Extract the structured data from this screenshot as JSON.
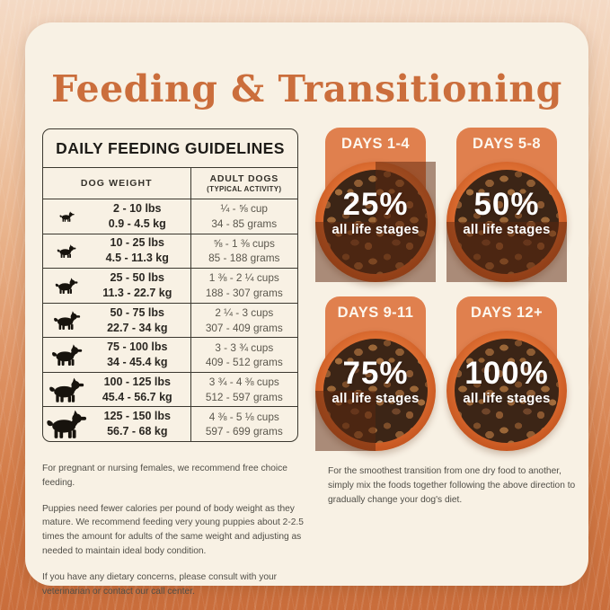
{
  "page": {
    "title": "Feeding & Transitioning"
  },
  "colors": {
    "accent_orange": "#CB6E3C",
    "badge_orange": "#E0804E",
    "bowl_rim_orange": "#CA5A23",
    "card_cream": "#F8F1E4",
    "shade": "rgba(92,38,13,0.5)",
    "table_border": "#3B382F"
  },
  "table": {
    "title": "DAILY FEEDING GUIDELINES",
    "col1_header": "DOG WEIGHT",
    "col2_header_line1": "ADULT DOGS",
    "col2_header_line2": "(TYPICAL ACTIVITY)",
    "rows": [
      {
        "icon": "dog-icon",
        "icon_size": 17,
        "lbs": "2 - 10 lbs",
        "kg": "0.9 - 4.5 kg",
        "cups": "¼ - ⅝ cup",
        "grams": "34 - 85 grams"
      },
      {
        "icon": "dog-icon",
        "icon_size": 22,
        "lbs": "10 - 25 lbs",
        "kg": "4.5 - 11.3 kg",
        "cups": "⅝ - 1 ⅜ cups",
        "grams": "85 - 188 grams"
      },
      {
        "icon": "dog-icon",
        "icon_size": 26,
        "lbs": "25 - 50 lbs",
        "kg": "11.3 - 22.7 kg",
        "cups": "1 ⅜ - 2 ¼ cups",
        "grams": "188 - 307 grams"
      },
      {
        "icon": "dog-icon",
        "icon_size": 31,
        "lbs": "50 - 75 lbs",
        "kg": "22.7 - 34 kg",
        "cups": "2 ¼ - 3 cups",
        "grams": "307 - 409 grams"
      },
      {
        "icon": "dog-icon",
        "icon_size": 35,
        "lbs": "75 - 100 lbs",
        "kg": "34 - 45.4 kg",
        "cups": "3 - 3 ¾ cups",
        "grams": "409 - 512 grams"
      },
      {
        "icon": "dog-icon",
        "icon_size": 40,
        "lbs": "100 - 125 lbs",
        "kg": "45.4 - 56.7 kg",
        "cups": "3 ¾ - 4 ⅜ cups",
        "grams": "512 - 597 grams"
      },
      {
        "icon": "dog-icon",
        "icon_size": 46,
        "lbs": "125 - 150 lbs",
        "kg": "56.7 - 68 kg",
        "cups": "4 ⅜ - 5 ⅛ cups",
        "grams": "597 - 699 grams"
      }
    ]
  },
  "transition": {
    "bowls": [
      {
        "badge": "DAYS 1-4",
        "percent": 25,
        "percent_label": "25%",
        "subtitle": "all life stages",
        "icon": "food-bowl-icon"
      },
      {
        "badge": "DAYS 5-8",
        "percent": 50,
        "percent_label": "50%",
        "subtitle": "all life stages",
        "icon": "food-bowl-icon"
      },
      {
        "badge": "DAYS 9-11",
        "percent": 75,
        "percent_label": "75%",
        "subtitle": "all life stages",
        "icon": "food-bowl-icon"
      },
      {
        "badge": "DAYS 12+",
        "percent": 100,
        "percent_label": "100%",
        "subtitle": "all life stages",
        "icon": "food-bowl-icon"
      }
    ]
  },
  "footnotes": {
    "left": [
      "For pregnant or nursing females, we recommend free choice feeding.",
      "Puppies need fewer calories per pound of body weight as they mature. We recommend feeding very young puppies about 2-2.5 times the amount for adults of the same weight and adjusting as needed to maintain ideal body condition.",
      "If you have any dietary concerns, please consult with your veterinarian or contact our call center."
    ],
    "right": "For the smoothest transition from one dry food to another, simply mix the foods together following the above direction to gradually change your dog's diet."
  }
}
